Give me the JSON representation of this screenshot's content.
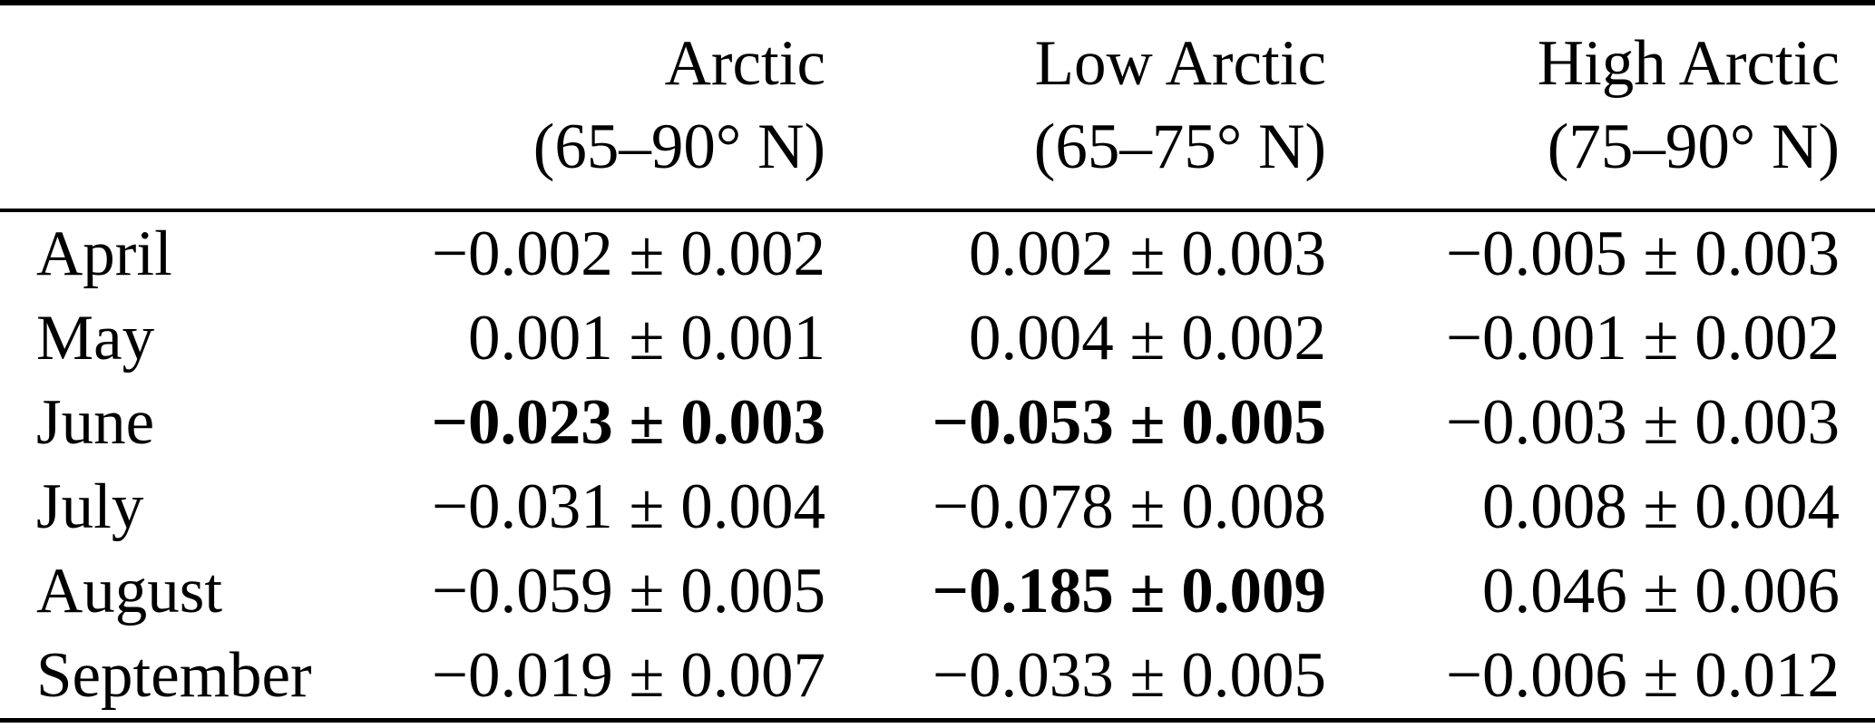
{
  "table": {
    "columns": [
      {
        "name": "Arctic",
        "range": "(65–90° N)"
      },
      {
        "name": "Low Arctic",
        "range": "(65–75° N)"
      },
      {
        "name": "High Arctic",
        "range": "(75–90° N)"
      }
    ],
    "rows": [
      {
        "month": "April",
        "cells": [
          {
            "value": "−0.002 ± 0.002",
            "bold": false
          },
          {
            "value": "0.002 ± 0.003",
            "bold": false
          },
          {
            "value": "−0.005 ± 0.003",
            "bold": false
          }
        ]
      },
      {
        "month": "May",
        "cells": [
          {
            "value": "0.001 ± 0.001",
            "bold": false
          },
          {
            "value": "0.004 ± 0.002",
            "bold": false
          },
          {
            "value": "−0.001 ± 0.002",
            "bold": false
          }
        ]
      },
      {
        "month": "June",
        "cells": [
          {
            "value": "−0.023 ± 0.003",
            "bold": true
          },
          {
            "value": "−0.053 ± 0.005",
            "bold": true
          },
          {
            "value": "−0.003 ± 0.003",
            "bold": false
          }
        ]
      },
      {
        "month": "July",
        "cells": [
          {
            "value": "−0.031 ± 0.004",
            "bold": false
          },
          {
            "value": "−0.078 ± 0.008",
            "bold": false
          },
          {
            "value": "0.008 ± 0.004",
            "bold": false
          }
        ]
      },
      {
        "month": "August",
        "cells": [
          {
            "value": "−0.059 ± 0.005",
            "bold": false
          },
          {
            "value": "−0.185 ± 0.009",
            "bold": true
          },
          {
            "value": "0.046 ± 0.006",
            "bold": false
          }
        ]
      },
      {
        "month": "September",
        "cells": [
          {
            "value": "−0.019 ± 0.007",
            "bold": false
          },
          {
            "value": "−0.033 ± 0.005",
            "bold": false
          },
          {
            "value": "−0.006 ± 0.012",
            "bold": false
          }
        ]
      }
    ]
  }
}
